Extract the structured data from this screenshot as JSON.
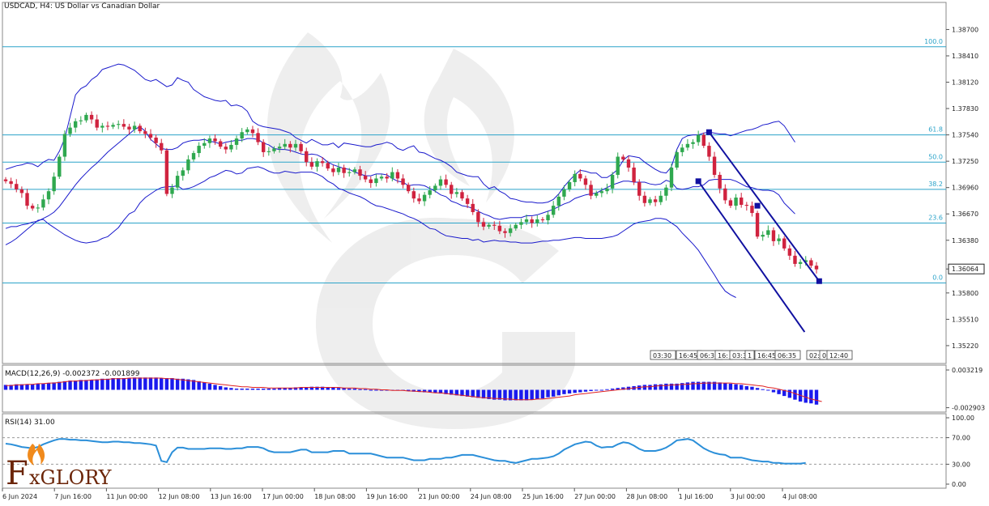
{
  "header": {
    "title": "USDCAD, H4:  US Dollar vs Canadian Dollar"
  },
  "brand": {
    "name": "FxGLORY",
    "initial": "F",
    "rest": "xGLORY"
  },
  "colors": {
    "bull": "#2fa84f",
    "bear": "#d0233f",
    "bands": "#1a1acc",
    "fib": "#2ba3c9",
    "channel": "#1010a0",
    "macd_hist": "#1a1aee",
    "macd_signal": "#e02020",
    "rsi": "#2b8fd9",
    "price_tag": "#ffffff"
  },
  "chart_data": [
    {
      "type": "candlestick",
      "symbol": "USDCAD",
      "timeframe": "H4",
      "ylim": [
        1.3505,
        1.389
      ],
      "y_ticks": [
        "1.38700",
        "1.38410",
        "1.38120",
        "1.37830",
        "1.37540",
        "1.37250",
        "1.36960",
        "1.36670",
        "1.36380",
        "1.36064",
        "1.35800",
        "1.35510",
        "1.35220"
      ],
      "y_tick_values": [
        1.387,
        1.3841,
        1.3812,
        1.3783,
        1.3754,
        1.3725,
        1.3696,
        1.3667,
        1.3638,
        1.36064,
        1.358,
        1.3551,
        1.3522
      ],
      "current_price": "1.36064",
      "x_labels": [
        "6 Jun 2024",
        "7 Jun 16:00",
        "11 Jun 00:00",
        "12 Jun 08:00",
        "13 Jun 16:00",
        "17 Jun 00:00",
        "18 Jun 08:00",
        "19 Jun 16:00",
        "21 Jun 00:00",
        "24 Jun 08:00",
        "25 Jun 16:00",
        "27 Jun 00:00",
        "28 Jun 08:00",
        "1 Jul 16:00",
        "3 Jul 00:00",
        "4 Jul 08:00"
      ],
      "time_markers": [
        "03:30",
        "16:45",
        "06:35",
        "16:",
        "03:30",
        "1",
        "16:45",
        "06:35",
        "02:",
        "0",
        "12:40"
      ],
      "fibonacci": [
        {
          "level": "100.0",
          "price": 1.3851
        },
        {
          "level": "61.8",
          "price": 1.3754
        },
        {
          "level": "50.0",
          "price": 1.3724
        },
        {
          "level": "38.2",
          "price": 1.3694
        },
        {
          "level": "23.6",
          "price": 1.3657
        },
        {
          "level": "0.0",
          "price": 1.3591
        }
      ],
      "close": [
        1.3703,
        1.37,
        1.3694,
        1.369,
        1.3676,
        1.3673,
        1.3674,
        1.3683,
        1.3692,
        1.3708,
        1.373,
        1.3755,
        1.3762,
        1.3769,
        1.377,
        1.3776,
        1.3771,
        1.3762,
        1.3764,
        1.3763,
        1.3765,
        1.3766,
        1.3763,
        1.376,
        1.3764,
        1.3758,
        1.3755,
        1.3751,
        1.3745,
        1.3737,
        1.3689,
        1.3696,
        1.3709,
        1.3715,
        1.3727,
        1.3734,
        1.3742,
        1.3745,
        1.375,
        1.3747,
        1.3741,
        1.3738,
        1.3743,
        1.375,
        1.3757,
        1.376,
        1.3756,
        1.3746,
        1.3735,
        1.3736,
        1.3739,
        1.3741,
        1.3744,
        1.374,
        1.3744,
        1.3736,
        1.3724,
        1.3719,
        1.3725,
        1.3723,
        1.3717,
        1.3713,
        1.3718,
        1.3712,
        1.3713,
        1.3716,
        1.3709,
        1.3705,
        1.3701,
        1.3706,
        1.3708,
        1.3706,
        1.3713,
        1.3706,
        1.3699,
        1.3692,
        1.3684,
        1.3681,
        1.3688,
        1.3693,
        1.3698,
        1.3705,
        1.3699,
        1.3689,
        1.3691,
        1.3684,
        1.3678,
        1.3669,
        1.3658,
        1.3653,
        1.3655,
        1.3654,
        1.3648,
        1.3646,
        1.3651,
        1.3655,
        1.3658,
        1.3661,
        1.3657,
        1.3661,
        1.366,
        1.3666,
        1.3676,
        1.3686,
        1.3694,
        1.3702,
        1.3711,
        1.3706,
        1.3699,
        1.3687,
        1.369,
        1.3692,
        1.3695,
        1.371,
        1.373,
        1.3727,
        1.3718,
        1.3702,
        1.3687,
        1.3679,
        1.3683,
        1.368,
        1.3687,
        1.3696,
        1.3718,
        1.3735,
        1.374,
        1.3744,
        1.3746,
        1.3754,
        1.3742,
        1.373,
        1.371,
        1.3695,
        1.3682,
        1.3676,
        1.3685,
        1.3677,
        1.3676,
        1.3668,
        1.3642,
        1.3644,
        1.3649,
        1.3637,
        1.364,
        1.3629,
        1.3621,
        1.3612,
        1.3614,
        1.3616,
        1.361,
        1.3606
      ],
      "upper_band": [
        1.3716,
        1.3718,
        1.372,
        1.3721,
        1.3723,
        1.3722,
        1.3719,
        1.3724,
        1.3727,
        1.3726,
        1.3736,
        1.375,
        1.3774,
        1.3798,
        1.3805,
        1.3808,
        1.3815,
        1.3819,
        1.3826,
        1.3828,
        1.383,
        1.3832,
        1.3831,
        1.3828,
        1.3825,
        1.382,
        1.3815,
        1.3813,
        1.3815,
        1.3811,
        1.3807,
        1.3809,
        1.3817,
        1.3814,
        1.3812,
        1.3804,
        1.38,
        1.3796,
        1.3794,
        1.3792,
        1.3791,
        1.3792,
        1.3786,
        1.3787,
        1.3785,
        1.378,
        1.3769,
        1.3765,
        1.3763,
        1.3762,
        1.3761,
        1.376,
        1.3758,
        1.3756,
        1.3751,
        1.3748,
        1.3745,
        1.3749,
        1.3746,
        1.3743,
        1.3743,
        1.3745,
        1.374,
        1.3745,
        1.3744,
        1.3743,
        1.3742,
        1.3741,
        1.3741,
        1.3743,
        1.3744,
        1.3746,
        1.3744,
        1.3739,
        1.3737,
        1.374,
        1.3742,
        1.3735,
        1.3734,
        1.3731,
        1.3728,
        1.3726,
        1.3723,
        1.3719,
        1.3713,
        1.3711,
        1.3709,
        1.3708,
        1.3708,
        1.37,
        1.3695,
        1.3697,
        1.3692,
        1.3689,
        1.3684,
        1.3683,
        1.3681,
        1.368,
        1.368,
        1.3679,
        1.3679,
        1.368,
        1.3683,
        1.3689,
        1.3697,
        1.3704,
        1.371,
        1.3715,
        1.3714,
        1.3712,
        1.3712,
        1.3707,
        1.3707,
        1.3711,
        1.3716,
        1.3726,
        1.3731,
        1.373,
        1.3729,
        1.3724,
        1.372,
        1.3716,
        1.3713,
        1.3712,
        1.3719,
        1.3738,
        1.375,
        1.3753,
        1.3754,
        1.3754,
        1.3756,
        1.3757,
        1.3756,
        1.3755,
        1.3755,
        1.3753,
        1.3755,
        1.3757,
        1.3759,
        1.376,
        1.3762,
        1.3765,
        1.3766,
        1.3768,
        1.3769,
        1.3764,
        1.3755,
        1.3746
      ],
      "middle_band": [
        1.3651,
        1.3653,
        1.3653,
        1.3655,
        1.3656,
        1.3658,
        1.3659,
        1.3662,
        1.3665,
        1.3669,
        1.3675,
        1.3683,
        1.3691,
        1.3699,
        1.3706,
        1.3712,
        1.3718,
        1.3723,
        1.3729,
        1.3735,
        1.374,
        1.3745,
        1.375,
        1.3755,
        1.376,
        1.3763,
        1.3758,
        1.3749,
        1.3744,
        1.3739,
        1.3738,
        1.3738,
        1.374,
        1.3745,
        1.3747,
        1.3748,
        1.3748,
        1.3749,
        1.3747,
        1.3746,
        1.3744,
        1.3746,
        1.3747,
        1.3748,
        1.3748,
        1.375,
        1.375,
        1.3749,
        1.3745,
        1.3743,
        1.3739,
        1.3738,
        1.3738,
        1.3737,
        1.3735,
        1.3733,
        1.3732,
        1.3733,
        1.3732,
        1.3729,
        1.3724,
        1.3721,
        1.3719,
        1.3717,
        1.3716,
        1.3713,
        1.3711,
        1.3709,
        1.3709,
        1.3711,
        1.3711,
        1.371,
        1.3706,
        1.3703,
        1.3702,
        1.3698,
        1.3699,
        1.3699,
        1.3698,
        1.3695,
        1.3692,
        1.3688,
        1.3686,
        1.3681,
        1.3679,
        1.3676,
        1.3675,
        1.3673,
        1.367,
        1.3667,
        1.3665,
        1.3662,
        1.3661,
        1.3662,
        1.3663,
        1.3663,
        1.3663,
        1.3665,
        1.3665,
        1.3666,
        1.3668,
        1.367,
        1.3672,
        1.3675,
        1.3678,
        1.368,
        1.3684,
        1.3686,
        1.3688,
        1.3689,
        1.369,
        1.3693,
        1.3696,
        1.3699,
        1.3701,
        1.3703,
        1.3703,
        1.3702,
        1.3702,
        1.3702,
        1.37,
        1.3699,
        1.37,
        1.3704,
        1.3702,
        1.3695,
        1.3694,
        1.3695,
        1.3697,
        1.3697,
        1.3699,
        1.3704,
        1.3705,
        1.3705,
        1.3705,
        1.3705,
        1.3703,
        1.37,
        1.3697,
        1.3696,
        1.3694,
        1.3693,
        1.3693,
        1.3692,
        1.3688,
        1.3679,
        1.3673,
        1.3667
      ],
      "lower_band": [
        1.3633,
        1.3636,
        1.364,
        1.3645,
        1.365,
        1.3655,
        1.366,
        1.3661,
        1.3656,
        1.3652,
        1.3648,
        1.3644,
        1.3641,
        1.3638,
        1.3636,
        1.3635,
        1.3636,
        1.3637,
        1.364,
        1.3642,
        1.3647,
        1.3652,
        1.366,
        1.3667,
        1.367,
        1.3679,
        1.3685,
        1.3689,
        1.3693,
        1.3696,
        1.3697,
        1.3697,
        1.3698,
        1.3694,
        1.3695,
        1.3697,
        1.37,
        1.3703,
        1.3707,
        1.3709,
        1.3712,
        1.3715,
        1.3714,
        1.3711,
        1.3712,
        1.3717,
        1.3718,
        1.3719,
        1.3717,
        1.3714,
        1.3712,
        1.3712,
        1.3714,
        1.3713,
        1.3712,
        1.3713,
        1.3713,
        1.3713,
        1.3711,
        1.3708,
        1.3703,
        1.37,
        1.3695,
        1.3693,
        1.369,
        1.3688,
        1.3686,
        1.3683,
        1.3679,
        1.3676,
        1.3675,
        1.3673,
        1.3671,
        1.3669,
        1.3667,
        1.3664,
        1.3662,
        1.3659,
        1.3655,
        1.3651,
        1.365,
        1.3646,
        1.3643,
        1.3642,
        1.3641,
        1.364,
        1.364,
        1.3638,
        1.3639,
        1.3636,
        1.3637,
        1.3638,
        1.3637,
        1.3637,
        1.3636,
        1.3636,
        1.3635,
        1.3635,
        1.3635,
        1.3636,
        1.3637,
        1.3637,
        1.3638,
        1.3638,
        1.3639,
        1.364,
        1.3641,
        1.3641,
        1.364,
        1.364,
        1.364,
        1.364,
        1.3641,
        1.3642,
        1.3644,
        1.3648,
        1.3652,
        1.3656,
        1.3658,
        1.3659,
        1.366,
        1.3662,
        1.3662,
        1.3661,
        1.3657,
        1.3653,
        1.3646,
        1.364,
        1.3634,
        1.3627,
        1.3618,
        1.3609,
        1.36,
        1.359,
        1.3582,
        1.3578,
        1.3575
      ],
      "channel": {
        "upper": [
          [
            1.3711,
            1.3757
          ],
          [
            1.3811,
            1.3593
          ]
        ],
        "lower": [
          [
            1.3695,
            1.3703
          ],
          [
            1.3852,
            1.3537
          ]
        ],
        "pivot": [
          1.374,
          1.3676
        ]
      }
    },
    {
      "type": "bar",
      "name": "MACD(12,26,9) -0.002372 -0.001899",
      "ylim": [
        -0.003219,
        0.003219
      ],
      "y_ticks": [
        "0.003219",
        "-0.002903"
      ],
      "histogram": [
        0.0008,
        0.0008,
        0.0009,
        0.0009,
        0.0009,
        0.0009,
        0.001,
        0.001,
        0.0011,
        0.0012,
        0.0013,
        0.0014,
        0.0015,
        0.0015,
        0.0016,
        0.0016,
        0.0016,
        0.0017,
        0.0018,
        0.0018,
        0.0019,
        0.0019,
        0.0019,
        0.0019,
        0.002,
        0.002,
        0.002,
        0.002,
        0.002,
        0.0019,
        0.0019,
        0.0019,
        0.0018,
        0.0018,
        0.0017,
        0.0016,
        0.0014,
        0.0012,
        0.001,
        0.0008,
        0.0006,
        0.0004,
        0.0003,
        0.0002,
        0.0002,
        0.0002,
        0.0002,
        0.0002,
        0.0002,
        0.0002,
        0.0002,
        0.0003,
        0.0003,
        0.0003,
        0.0004,
        0.0004,
        0.0004,
        0.0005,
        0.0005,
        0.0005,
        0.0004,
        0.0004,
        0.0003,
        0.0003,
        0.0002,
        0.0002,
        0.0001,
        0.0001,
        0.0,
        0.0,
        0.0,
        0.0,
        -0.0001,
        -0.0001,
        -0.0001,
        -0.0002,
        -0.0003,
        -0.0003,
        -0.0004,
        -0.0004,
        -0.0005,
        -0.0006,
        -0.0007,
        -0.0008,
        -0.0009,
        -0.001,
        -0.0011,
        -0.0012,
        -0.0013,
        -0.0014,
        -0.0015,
        -0.0016,
        -0.0016,
        -0.0017,
        -0.0017,
        -0.0017,
        -0.0017,
        -0.0017,
        -0.0016,
        -0.0015,
        -0.0014,
        -0.0012,
        -0.0011,
        -0.0009,
        -0.0007,
        -0.0006,
        -0.0005,
        -0.0004,
        -0.0003,
        -0.0002,
        -0.0001,
        0.0,
        0.0001,
        0.0002,
        0.0003,
        0.0004,
        0.0005,
        0.0006,
        0.0007,
        0.0008,
        0.0008,
        0.0009,
        0.0009,
        0.001,
        0.001,
        0.001,
        0.0011,
        0.0012,
        0.0013,
        0.0013,
        0.0013,
        0.0013,
        0.0013,
        0.0012,
        0.0011,
        0.001,
        0.0009,
        0.0008,
        0.0006,
        0.0005,
        0.0003,
        0.0001,
        -0.0001,
        -0.0004,
        -0.0007,
        -0.001,
        -0.0013,
        -0.0016,
        -0.0019,
        -0.0021,
        -0.0022,
        -0.0024
      ],
      "signal": [
        0.0007,
        0.0007,
        0.0008,
        0.0008,
        0.0009,
        0.0009,
        0.001,
        0.001,
        0.0011,
        0.0011,
        0.0012,
        0.0013,
        0.0014,
        0.0014,
        0.0015,
        0.0015,
        0.0016,
        0.0016,
        0.0017,
        0.0017,
        0.0018,
        0.0018,
        0.0018,
        0.0019,
        0.0019,
        0.0019,
        0.0019,
        0.0019,
        0.0019,
        0.0019,
        0.0018,
        0.0018,
        0.0017,
        0.0016,
        0.0015,
        0.0014,
        0.0013,
        0.0012,
        0.0011,
        0.001,
        0.0009,
        0.0008,
        0.0007,
        0.0006,
        0.0005,
        0.0005,
        0.0004,
        0.0004,
        0.0004,
        0.0003,
        0.0003,
        0.0003,
        0.0003,
        0.0003,
        0.0003,
        0.0004,
        0.0004,
        0.0004,
        0.0004,
        0.0004,
        0.0004,
        0.0004,
        0.0004,
        0.0003,
        0.0003,
        0.0003,
        0.0002,
        0.0002,
        0.0001,
        0.0001,
        0.0,
        0.0,
        -0.0001,
        -0.0001,
        -0.0001,
        -0.0002,
        -0.0002,
        -0.0003,
        -0.0003,
        -0.0004,
        -0.0005,
        -0.0005,
        -0.0006,
        -0.0007,
        -0.0008,
        -0.0009,
        -0.001,
        -0.0011,
        -0.0012,
        -0.0013,
        -0.0013,
        -0.0014,
        -0.0014,
        -0.0015,
        -0.0015,
        -0.0016,
        -0.0016,
        -0.0016,
        -0.0016,
        -0.0015,
        -0.0015,
        -0.0014,
        -0.0013,
        -0.0012,
        -0.0011,
        -0.001,
        -0.0008,
        -0.0007,
        -0.0006,
        -0.0005,
        -0.0004,
        -0.0003,
        -0.0002,
        -0.0001,
        0.0,
        0.0001,
        0.0002,
        0.0003,
        0.0004,
        0.0005,
        0.0005,
        0.0006,
        0.0007,
        0.0007,
        0.0008,
        0.0008,
        0.0009,
        0.0009,
        0.001,
        0.001,
        0.0011,
        0.0011,
        0.0011,
        0.0011,
        0.0011,
        0.0011,
        0.001,
        0.001,
        0.0009,
        0.0008,
        0.0007,
        0.0006,
        0.0004,
        0.0003,
        0.0001,
        -0.0001,
        -0.0003,
        -0.0006,
        -0.0009,
        -0.0012,
        -0.0015,
        -0.0017,
        -0.0019
      ]
    },
    {
      "type": "line",
      "name": "RSI(14) 31.00",
      "ylim": [
        0,
        100
      ],
      "y_ticks": [
        "100.00",
        "70.00",
        "30.00",
        "0.00"
      ],
      "y_tick_values": [
        100,
        70,
        30,
        0
      ],
      "levels": [
        70,
        30
      ],
      "values": [
        61,
        60,
        58,
        56,
        55,
        54,
        56,
        60,
        63,
        66,
        68,
        68,
        67,
        67,
        66,
        66,
        65,
        64,
        63,
        63,
        64,
        64,
        63,
        63,
        62,
        62,
        61,
        60,
        58,
        35,
        33,
        48,
        55,
        55,
        53,
        53,
        53,
        53,
        54,
        54,
        54,
        53,
        53,
        54,
        54,
        56,
        56,
        56,
        54,
        50,
        48,
        48,
        48,
        48,
        50,
        52,
        52,
        48,
        48,
        48,
        48,
        50,
        50,
        50,
        46,
        46,
        46,
        46,
        46,
        44,
        42,
        40,
        40,
        40,
        40,
        38,
        36,
        36,
        36,
        38,
        38,
        38,
        40,
        40,
        42,
        44,
        44,
        44,
        42,
        40,
        38,
        36,
        35,
        35,
        33,
        32,
        34,
        36,
        38,
        38,
        39,
        40,
        42,
        46,
        52,
        56,
        60,
        62,
        64,
        63,
        58,
        55,
        56,
        56,
        60,
        63,
        62,
        58,
        53,
        50,
        50,
        50,
        52,
        55,
        60,
        66,
        67,
        68,
        66,
        60,
        54,
        50,
        47,
        45,
        44,
        40,
        40,
        40,
        38,
        36,
        35,
        34,
        34,
        32,
        32,
        31,
        31,
        31,
        31,
        32
      ]
    }
  ]
}
